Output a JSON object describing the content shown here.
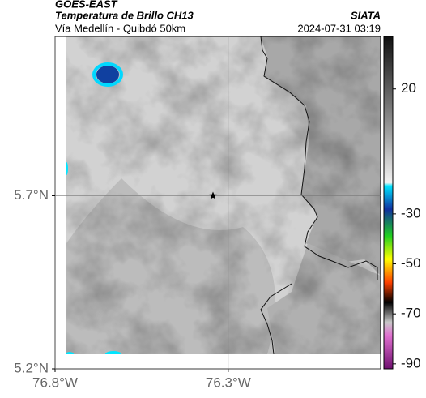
{
  "header": {
    "source": "GOES-EAST",
    "product": "Temperatura de Brillo CH13",
    "agency": "SIATA",
    "subtitle": "Vía Medellín - Quibdó 50km",
    "timestamp": "2024-07-31 03:19"
  },
  "map": {
    "xlim": [
      -76.8,
      -75.86
    ],
    "ylim": [
      5.2,
      6.16
    ],
    "xticks": [
      {
        "value": -76.8,
        "label": "76.8°W"
      },
      {
        "value": -76.3,
        "label": "76.3°W"
      }
    ],
    "yticks": [
      {
        "value": 5.2,
        "label": "5.2°N"
      },
      {
        "value": 5.7,
        "label": "5.7°N"
      }
    ],
    "grid": true,
    "marker": {
      "lon": -76.344,
      "lat": 5.7
    }
  },
  "colorbar": {
    "clim": [
      -92,
      41
    ],
    "ticks": [
      20,
      -30,
      -50,
      -70,
      -90
    ]
  }
}
